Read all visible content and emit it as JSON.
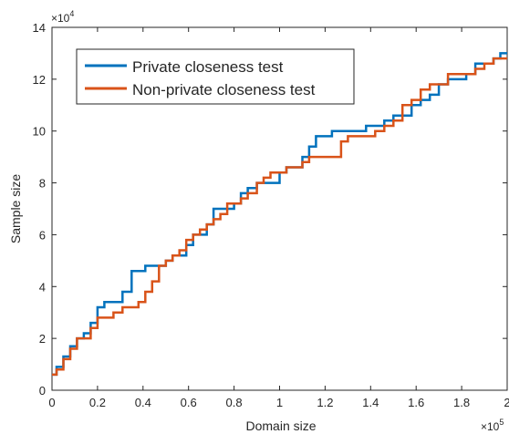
{
  "chart_data": {
    "type": "line",
    "xlabel": "Domain size",
    "ylabel": "Sample size",
    "x_multiplier_label": "×10",
    "x_multiplier_exp": "5",
    "y_multiplier_label": "×10",
    "y_multiplier_exp": "4",
    "xlim": [
      0,
      2
    ],
    "ylim": [
      0,
      14
    ],
    "x_ticks": [
      "0",
      "0.2",
      "0.4",
      "0.6",
      "0.8",
      "1",
      "1.2",
      "1.4",
      "1.6",
      "1.8",
      "2"
    ],
    "y_ticks": [
      "0",
      "2",
      "4",
      "6",
      "8",
      "10",
      "12",
      "14"
    ],
    "grid": false,
    "legend_position": "top-left",
    "series": [
      {
        "name": "Private closeness test",
        "color": "#0072BD",
        "x": [
          0,
          0.02,
          0.05,
          0.08,
          0.11,
          0.14,
          0.17,
          0.2,
          0.23,
          0.27,
          0.31,
          0.35,
          0.38,
          0.41,
          0.44,
          0.47,
          0.5,
          0.53,
          0.56,
          0.59,
          0.62,
          0.65,
          0.68,
          0.71,
          0.74,
          0.77,
          0.8,
          0.83,
          0.86,
          0.9,
          0.93,
          0.96,
          1.0,
          1.03,
          1.06,
          1.1,
          1.13,
          1.16,
          1.2,
          1.23,
          1.27,
          1.3,
          1.34,
          1.38,
          1.42,
          1.46,
          1.5,
          1.54,
          1.58,
          1.62,
          1.66,
          1.7,
          1.74,
          1.78,
          1.82,
          1.86,
          1.9,
          1.94,
          1.97,
          2.0
        ],
        "y": [
          0.6,
          0.9,
          1.3,
          1.7,
          2.0,
          2.2,
          2.6,
          3.2,
          3.4,
          3.4,
          3.8,
          4.6,
          4.6,
          4.8,
          4.8,
          4.8,
          5.0,
          5.2,
          5.2,
          5.6,
          6.0,
          6.0,
          6.4,
          7.0,
          7.0,
          7.0,
          7.2,
          7.6,
          7.8,
          8.0,
          8.0,
          8.0,
          8.4,
          8.6,
          8.6,
          9.0,
          9.4,
          9.8,
          9.8,
          10.0,
          10.0,
          10.0,
          10.0,
          10.2,
          10.2,
          10.4,
          10.6,
          10.6,
          11.0,
          11.2,
          11.4,
          11.8,
          12.0,
          12.0,
          12.2,
          12.6,
          12.6,
          12.8,
          13.0,
          13.0
        ]
      },
      {
        "name": "Non-private closeness test",
        "color": "#D95319",
        "x": [
          0,
          0.02,
          0.05,
          0.08,
          0.11,
          0.14,
          0.17,
          0.2,
          0.23,
          0.27,
          0.31,
          0.35,
          0.38,
          0.41,
          0.44,
          0.47,
          0.5,
          0.53,
          0.56,
          0.59,
          0.62,
          0.65,
          0.68,
          0.71,
          0.74,
          0.77,
          0.8,
          0.83,
          0.86,
          0.9,
          0.93,
          0.96,
          1.0,
          1.03,
          1.06,
          1.1,
          1.13,
          1.16,
          1.2,
          1.23,
          1.27,
          1.3,
          1.34,
          1.38,
          1.42,
          1.46,
          1.5,
          1.54,
          1.58,
          1.62,
          1.66,
          1.7,
          1.74,
          1.78,
          1.82,
          1.86,
          1.9,
          1.94,
          1.97,
          2.0
        ],
        "y": [
          0.6,
          0.8,
          1.2,
          1.6,
          2.0,
          2.0,
          2.4,
          2.8,
          2.8,
          3.0,
          3.2,
          3.2,
          3.4,
          3.8,
          4.2,
          4.8,
          5.0,
          5.2,
          5.4,
          5.8,
          6.0,
          6.2,
          6.4,
          6.6,
          6.8,
          7.2,
          7.2,
          7.4,
          7.6,
          8.0,
          8.2,
          8.4,
          8.4,
          8.6,
          8.6,
          8.8,
          9.0,
          9.0,
          9.0,
          9.0,
          9.6,
          9.8,
          9.8,
          9.8,
          10.0,
          10.2,
          10.4,
          11.0,
          11.2,
          11.6,
          11.8,
          11.8,
          12.2,
          12.2,
          12.2,
          12.4,
          12.6,
          12.8,
          12.8,
          12.8
        ]
      }
    ]
  }
}
